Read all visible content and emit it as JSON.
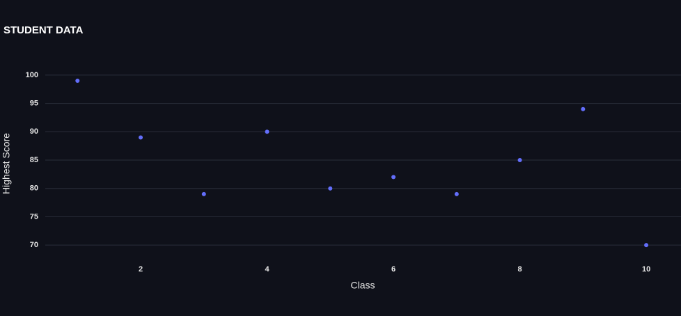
{
  "chart_data": {
    "type": "scatter",
    "title": "STUDENT DATA",
    "x_label": "Class",
    "y_label": "Highest Score",
    "series": [
      {
        "name": "Highest Score",
        "color": "#636efa",
        "x": [
          1,
          2,
          3,
          4,
          5,
          6,
          7,
          8,
          9,
          10
        ],
        "values": [
          99,
          89,
          79,
          90,
          80,
          82,
          79,
          85,
          94,
          70
        ]
      }
    ],
    "xlim": [
      0.49,
      10.55
    ],
    "xticks": [
      2,
      4,
      6,
      8,
      10
    ],
    "ylim": [
      67.8,
      102.2
    ],
    "yticks": [
      70,
      75,
      80,
      85,
      90,
      95,
      100
    ],
    "grid": true
  }
}
